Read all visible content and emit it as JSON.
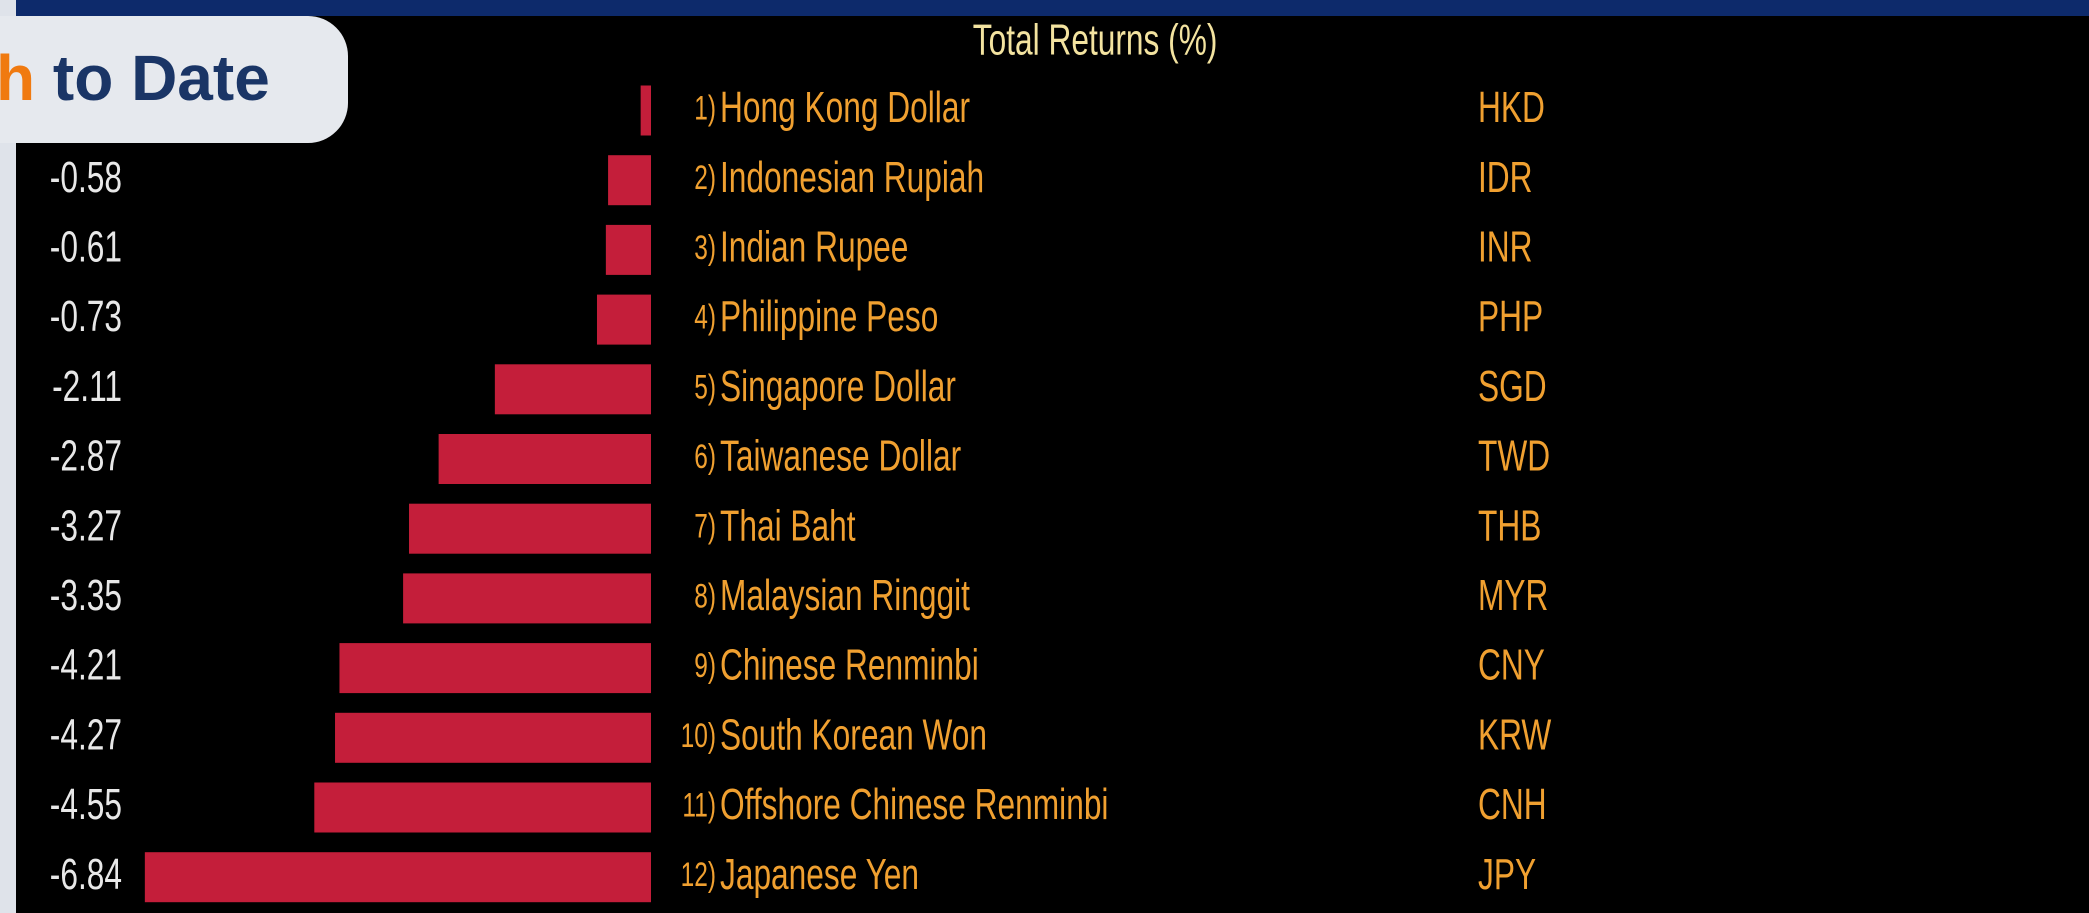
{
  "chart_data": {
    "type": "bar",
    "orientation": "horizontal",
    "title": "Total Returns (%)",
    "badge": [
      "h",
      "to Date"
    ],
    "ranks": [
      "1)",
      "2)",
      "3)",
      "4)",
      "5)",
      "6)",
      "7)",
      "8)",
      "9)",
      "10)",
      "11)",
      "12)"
    ],
    "categories": [
      "Hong Kong Dollar",
      "Indonesian Rupiah",
      "Indian Rupee",
      "Philippine Peso",
      "Singapore Dollar",
      "Taiwanese Dollar",
      "Thai Baht",
      "Malaysian Ringgit",
      "Chinese Renminbi",
      "South Korean Won",
      "Offshore Chinese Renminbi",
      "Japanese Yen"
    ],
    "codes": [
      "HKD",
      "IDR",
      "INR",
      "PHP",
      "SGD",
      "TWD",
      "THB",
      "MYR",
      "CNY",
      "KRW",
      "CNH",
      "JPY"
    ],
    "values": [
      -0.14,
      -0.58,
      -0.61,
      -0.73,
      -2.11,
      -2.87,
      -3.27,
      -3.35,
      -4.21,
      -4.27,
      -4.55,
      -6.84
    ],
    "color": "#c41e3a",
    "xlim": [
      -7,
      0
    ]
  }
}
